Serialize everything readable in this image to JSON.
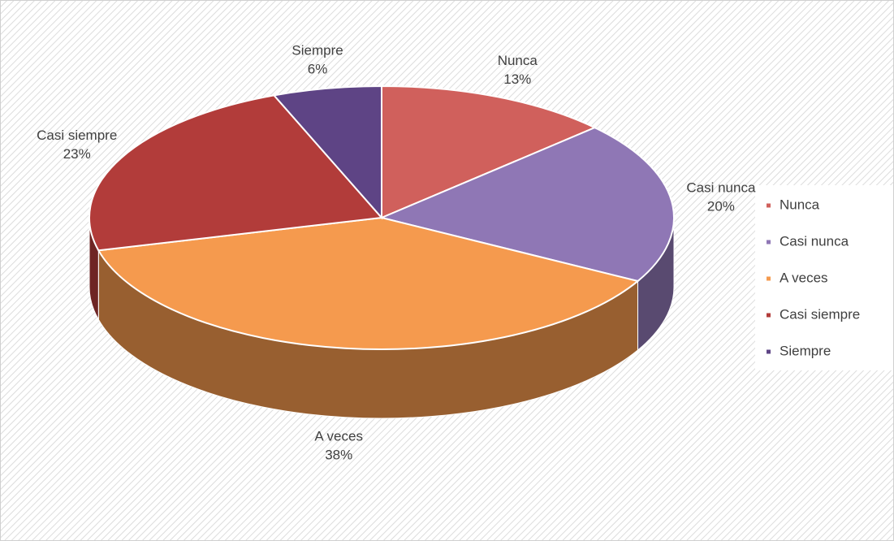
{
  "chart_data": {
    "type": "pie",
    "categories": [
      "Nunca",
      "Casi nunca",
      "A veces",
      "Casi siempre",
      "Siempre"
    ],
    "values": [
      13,
      20,
      38,
      23,
      6
    ],
    "value_labels": [
      "13%",
      "20%",
      "38%",
      "23%",
      "6%"
    ],
    "colors": [
      "#d0605c",
      "#8f77b5",
      "#f59a4e",
      "#b23c3a",
      "#5e4485"
    ],
    "legend": "right"
  }
}
